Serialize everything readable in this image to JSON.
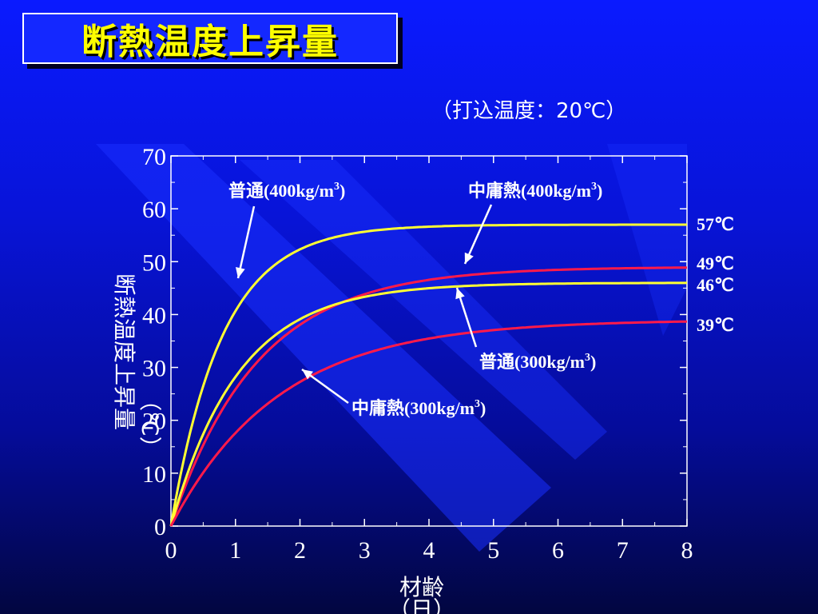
{
  "title": "断熱温度上昇量",
  "subtitle": "（打込温度：20℃）",
  "colors": {
    "background": "#0a1aff",
    "title_text": "#ffff00",
    "yellow_series": "#ffff33",
    "red_series": "#ff1a4a"
  },
  "chart_data": {
    "type": "line",
    "xlabel": "材齢",
    "xunit": "（日）",
    "ylabel": "断熱温度上昇量",
    "yunit": "（℃）",
    "xlim": [
      0,
      8
    ],
    "ylim": [
      0,
      70
    ],
    "xticks": [
      0,
      1,
      2,
      3,
      4,
      5,
      6,
      7,
      8
    ],
    "yticks": [
      0,
      10,
      20,
      30,
      40,
      50,
      60,
      70
    ],
    "series": [
      {
        "name": "普通(400kg/m3)",
        "label_main": "普通(400kg/m",
        "label_sup": "3",
        "label_close": ")",
        "color": "#ffff33",
        "final": 57,
        "final_label": "57℃",
        "rate": 1.25,
        "x": [
          0,
          0.5,
          1,
          1.5,
          2,
          3,
          4,
          5,
          6,
          7,
          8
        ],
        "y": [
          0,
          26.9,
          40.1,
          47.7,
          51.8,
          55.5,
          56.6,
          56.9,
          57.0,
          57.0,
          57.0
        ]
      },
      {
        "name": "中庸熱(400kg/m3)",
        "label_main": "中庸熱(400kg/m",
        "label_sup": "3",
        "label_close": ")",
        "color": "#ff1a4a",
        "final": 49,
        "final_label": "49℃",
        "rate": 0.75,
        "x": [
          0,
          0.5,
          1,
          1.5,
          2,
          3,
          4,
          5,
          6,
          7,
          8
        ],
        "y": [
          0,
          15.8,
          26.1,
          33.1,
          38.1,
          44.0,
          46.8,
          48.1,
          48.6,
          48.8,
          48.9
        ]
      },
      {
        "name": "普通(300kg/m3)",
        "label_main": "普通(",
        "label_bold": "300kg/m",
        "label_sup": "3",
        "label_close": ")",
        "color": "#ffff33",
        "final": 46,
        "final_label": "46℃",
        "rate": 0.95,
        "x": [
          0,
          0.5,
          1,
          1.5,
          2,
          3,
          4,
          5,
          6,
          7,
          8
        ],
        "y": [
          0,
          17.9,
          28.9,
          35.5,
          39.7,
          43.4,
          44.9,
          45.5,
          45.8,
          45.9,
          46.0
        ]
      },
      {
        "name": "中庸熱(300kg/m3)",
        "label_main": "中庸熱(",
        "label_bold": "300kg/m",
        "label_sup": "3",
        "label_close": ")",
        "color": "#ff1a4a",
        "final": 39,
        "final_label": "39℃",
        "rate": 0.6,
        "x": [
          0,
          0.5,
          1,
          1.5,
          2,
          3,
          4,
          5,
          6,
          7,
          8
        ],
        "y": [
          0,
          10.1,
          17.6,
          23.2,
          27.6,
          32.6,
          35.5,
          37.2,
          38.1,
          38.5,
          38.8
        ]
      }
    ]
  }
}
